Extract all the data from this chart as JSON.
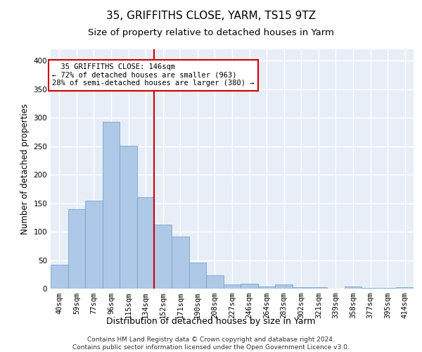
{
  "title": "35, GRIFFITHS CLOSE, YARM, TS15 9TZ",
  "subtitle": "Size of property relative to detached houses in Yarm",
  "xlabel": "Distribution of detached houses by size in Yarm",
  "ylabel": "Number of detached properties",
  "categories": [
    "40sqm",
    "59sqm",
    "77sqm",
    "96sqm",
    "115sqm",
    "134sqm",
    "152sqm",
    "171sqm",
    "190sqm",
    "208sqm",
    "227sqm",
    "246sqm",
    "264sqm",
    "283sqm",
    "302sqm",
    "321sqm",
    "339sqm",
    "358sqm",
    "377sqm",
    "395sqm",
    "414sqm"
  ],
  "values": [
    42,
    140,
    155,
    293,
    251,
    160,
    112,
    92,
    46,
    23,
    8,
    9,
    4,
    7,
    2,
    3,
    0,
    4,
    1,
    1,
    3
  ],
  "bar_color": "#aec8e8",
  "bar_edge_color": "#6a9fc0",
  "vline_x_index": 5,
  "vline_color": "#cc0000",
  "annotation_text": "  35 GRIFFITHS CLOSE: 146sqm\n← 72% of detached houses are smaller (963)\n28% of semi-detached houses are larger (380) →",
  "annotation_box_color": "#ffffff",
  "annotation_box_edge": "#cc0000",
  "footer": "Contains HM Land Registry data © Crown copyright and database right 2024.\nContains public sector information licensed under the Open Government Licence v3.0.",
  "ylim": [
    0,
    420
  ],
  "yticks": [
    0,
    50,
    100,
    150,
    200,
    250,
    300,
    350,
    400
  ],
  "background_color": "#e8eef8",
  "grid_color": "#ffffff",
  "title_fontsize": 11,
  "subtitle_fontsize": 9.5,
  "xlabel_fontsize": 9,
  "ylabel_fontsize": 8.5,
  "tick_fontsize": 7.5,
  "footer_fontsize": 6.5
}
